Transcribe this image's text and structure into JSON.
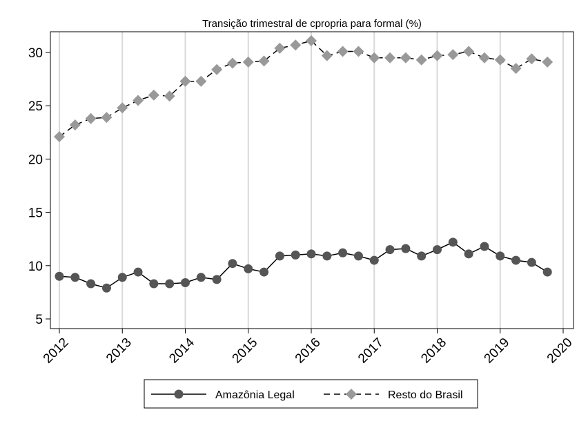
{
  "chart_data": {
    "type": "line",
    "title": "Transição trimestral de cpropria para formal (%)",
    "xlabel": "",
    "ylabel": "",
    "xlim": [
      2012,
      2020
    ],
    "ylim": [
      4.2,
      32
    ],
    "x_ticks": [
      "2012",
      "2013",
      "2014",
      "2015",
      "2016",
      "2017",
      "2018",
      "2019",
      "2020"
    ],
    "y_ticks": [
      "5",
      "10",
      "15",
      "20",
      "25",
      "30"
    ],
    "x_grid": true,
    "legend_position": "bottom",
    "x": [
      2012.0,
      2012.25,
      2012.5,
      2012.75,
      2013.0,
      2013.25,
      2013.5,
      2013.75,
      2014.0,
      2014.25,
      2014.5,
      2014.75,
      2015.0,
      2015.25,
      2015.5,
      2015.75,
      2016.0,
      2016.25,
      2016.5,
      2016.75,
      2017.0,
      2017.25,
      2017.5,
      2017.75,
      2018.0,
      2018.25,
      2018.5,
      2018.75,
      2019.0,
      2019.25,
      2019.5,
      2019.75
    ],
    "series": [
      {
        "name": "Amazônia Legal",
        "color": "#555555",
        "marker": "circle",
        "line_style": "solid",
        "values": [
          9.0,
          8.9,
          8.3,
          7.9,
          8.9,
          9.4,
          8.3,
          8.3,
          8.4,
          8.9,
          8.7,
          10.2,
          9.7,
          9.4,
          10.9,
          11.0,
          11.1,
          10.9,
          11.2,
          10.9,
          10.5,
          11.5,
          11.6,
          10.9,
          11.5,
          12.2,
          11.1,
          11.8,
          10.9,
          10.5,
          10.3,
          9.4
        ]
      },
      {
        "name": "Resto do Brasil",
        "color": "#999999",
        "marker": "diamond",
        "line_style": "dashed",
        "values": [
          22.1,
          23.2,
          23.8,
          23.9,
          24.8,
          25.5,
          26.0,
          25.9,
          27.3,
          27.3,
          28.4,
          29.0,
          29.1,
          29.2,
          30.4,
          30.7,
          31.1,
          29.7,
          30.1,
          30.1,
          29.5,
          29.5,
          29.5,
          29.3,
          29.7,
          29.8,
          30.1,
          29.5,
          29.3,
          28.5,
          29.4,
          29.1
        ]
      }
    ]
  }
}
